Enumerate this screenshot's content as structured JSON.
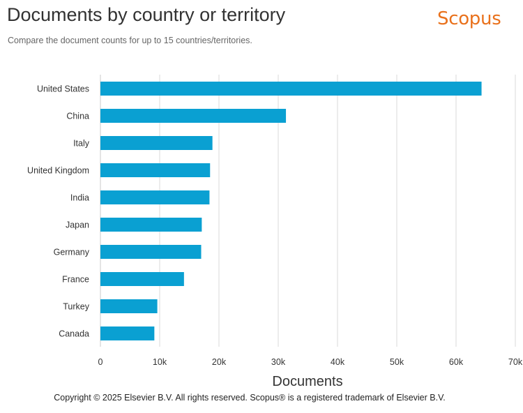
{
  "header": {
    "title": "Documents by country or territory",
    "subtitle": "Compare the document counts for up to 15 countries/territories.",
    "brand": "Scopus"
  },
  "footer": {
    "copyright": "Copyright © 2025 Elsevier B.V. All rights reserved. Scopus® is a registered trademark of Elsevier B.V."
  },
  "colors": {
    "bar": "#0aa0d2",
    "brand": "#e9711c",
    "grid": "#d8d8d8"
  },
  "chart_data": {
    "type": "bar",
    "orientation": "horizontal",
    "categories": [
      "United States",
      "China",
      "Italy",
      "United Kingdom",
      "India",
      "Japan",
      "Germany",
      "France",
      "Turkey",
      "Canada"
    ],
    "values": [
      64300,
      31300,
      18900,
      18500,
      18400,
      17100,
      17000,
      14100,
      9600,
      9100
    ],
    "xlabel": "Documents",
    "ylabel": "",
    "xlim": [
      0,
      70000
    ],
    "xticks": [
      0,
      10000,
      20000,
      30000,
      40000,
      50000,
      60000,
      70000
    ],
    "xtick_labels": [
      "0",
      "10k",
      "20k",
      "30k",
      "40k",
      "50k",
      "60k",
      "70k"
    ],
    "grid": "vertical",
    "legend": "none"
  }
}
